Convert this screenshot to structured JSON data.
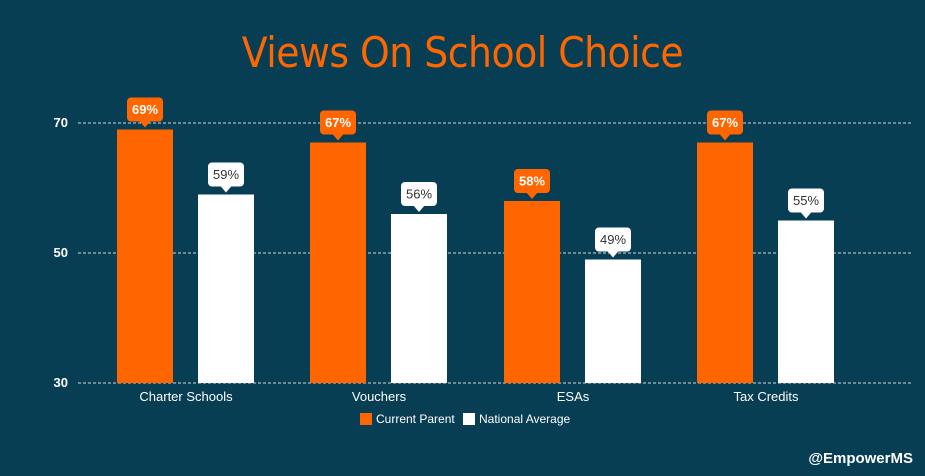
{
  "chart_data": {
    "type": "bar",
    "title": "Views On School Choice",
    "categories": [
      "Charter Schools",
      "Vouchers",
      "ESAs",
      "Tax Credits"
    ],
    "series": [
      {
        "name": "Current Parent",
        "values": [
          69,
          67,
          58,
          67
        ],
        "labels": [
          "69%",
          "67%",
          "58%",
          "67%"
        ],
        "color": "#ff6600"
      },
      {
        "name": "National Average",
        "values": [
          59,
          56,
          49,
          55
        ],
        "labels": [
          "59%",
          "56%",
          "49%",
          "55%"
        ],
        "color": "#ffffff"
      }
    ],
    "yticks": [
      30,
      50,
      70
    ],
    "ylim": [
      30,
      76
    ],
    "grid": true,
    "gridline_color": "#cfd8dc",
    "legend": "bottom-center",
    "xlabel": "",
    "ylabel": ""
  },
  "footer": {
    "credit": "@EmpowerMS"
  },
  "colors": {
    "background": "#073e54",
    "accent": "#ff6600",
    "secondary": "#ffffff"
  }
}
